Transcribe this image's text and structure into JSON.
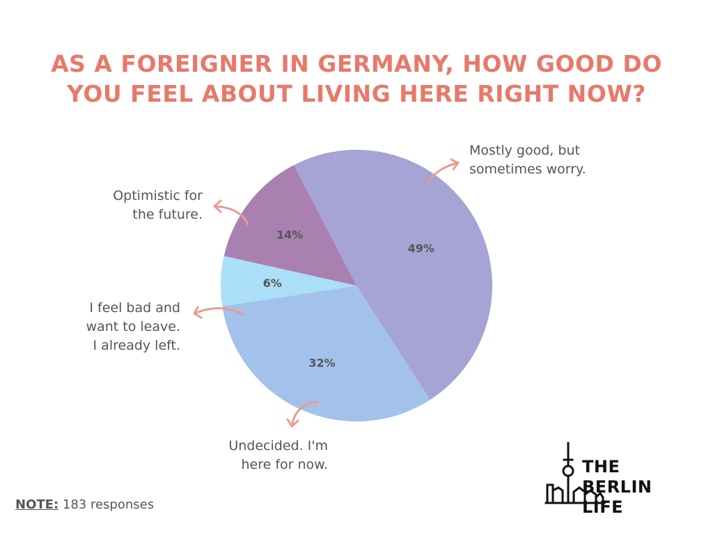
{
  "title": {
    "line1": "AS A FOREIGNER IN GERMANY, HOW GOOD DO",
    "line2": "YOU FEEL ABOUT LIVING HERE RIGHT NOW?"
  },
  "chart_data": {
    "type": "pie",
    "title": "AS A FOREIGNER IN GERMANY, HOW GOOD DO YOU FEEL ABOUT LIVING HERE RIGHT NOW?",
    "slices": [
      {
        "label": "Mostly good, but sometimes worry.",
        "value": 49,
        "value_label": "49%",
        "color": "#a6a3d5"
      },
      {
        "label": "Undecided. I'm here for now.",
        "value": 32,
        "value_label": "32%",
        "color": "#a2c2ec"
      },
      {
        "label": "I feel bad and want to leave. I already left.",
        "value": 6,
        "value_label": "6%",
        "color": "#aadff7"
      },
      {
        "label": "Optimistic for the future.",
        "value": 14,
        "value_label": "14%",
        "color": "#a881b0"
      }
    ]
  },
  "labels": {
    "mostly_good": {
      "line1": "Mostly good, but",
      "line2": "sometimes worry."
    },
    "undecided": {
      "line1": "Undecided. I'm",
      "line2": "here for now."
    },
    "feel_bad": {
      "line1": "I feel bad and",
      "line2": "want to leave.",
      "line3": "I already left."
    },
    "optimistic": {
      "line1": "Optimistic for",
      "line2": "the future."
    }
  },
  "note": {
    "label": "NOTE:",
    "text": "183 responses"
  },
  "logo": {
    "line1": "THE BERLIN",
    "line2": "LIFE"
  },
  "colors": {
    "accent": "#e8796a",
    "arrow": "#ec9a8e",
    "text": "#555555"
  }
}
